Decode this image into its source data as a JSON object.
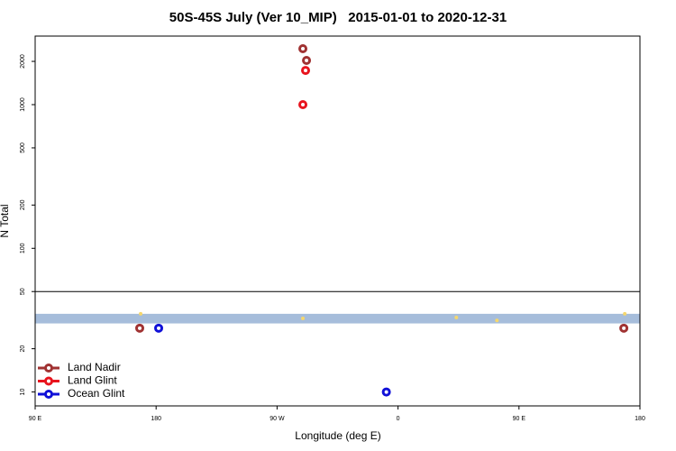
{
  "chart_data": {
    "type": "scatter",
    "title": "50S-45S July (Ver 10_MIP)   2015-01-01 to 2020-12-31",
    "x_label": "Longitude (deg E)",
    "y_label": "N Total",
    "log_y": true,
    "xlim": [
      90,
      540
    ],
    "ylim": [
      8,
      3000
    ],
    "xticks": [
      {
        "value": 90,
        "label": "90 E"
      },
      180,
      {
        "value": 270,
        "label": "90 W"
      },
      {
        "value": 360,
        "label": "0"
      },
      {
        "value": 450,
        "label": "90 E"
      },
      {
        "value": 540,
        "label": "180"
      }
    ],
    "yticks": [
      10,
      20,
      50,
      100,
      200,
      500,
      1000,
      2000
    ],
    "hline": 50,
    "band": {
      "ylim": [
        30,
        35
      ],
      "color": "#a6bddb"
    },
    "legend": "bottom-left",
    "series": [
      {
        "name": "Land Nadir",
        "color": "#a03232",
        "x": [
          167.8,
          289.2,
          291.9,
          528
        ],
        "values": [
          27.8,
          2450,
          2030,
          27.8
        ]
      },
      {
        "name": "Land Glint",
        "color": "#e8141e",
        "x": [
          291.2,
          289.2
        ],
        "values": [
          1730,
          1000
        ]
      },
      {
        "name": "Ocean Glint",
        "color": "#1010d8",
        "x": [
          181.9,
          351.3
        ],
        "values": [
          27.8,
          10
        ]
      },
      {
        "color": "#f5d76e",
        "x": [
          168.5,
          289.2,
          528.7,
          403.4,
          433.6
        ],
        "values": [
          35,
          32.5,
          35,
          33,
          31.5
        ]
      }
    ]
  }
}
